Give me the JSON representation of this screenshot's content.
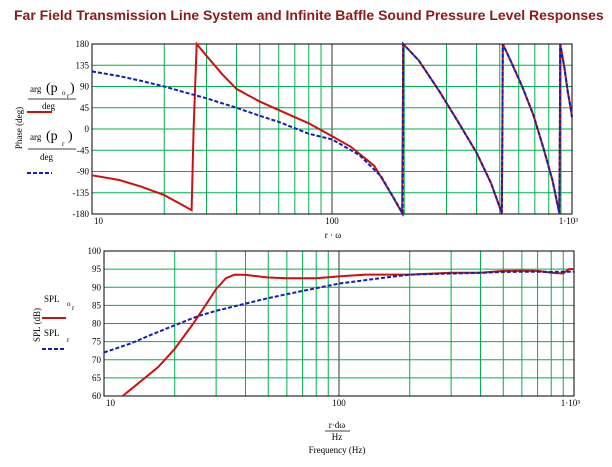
{
  "title": "Far Field Transmission Line System and Infinite Baffle Sound Pressure Level Responses",
  "colors": {
    "title": "#8b1a1a",
    "grid": "#00b050",
    "series_tl": "#cc1111",
    "series_ib": "#1122aa",
    "frame": "#000000"
  },
  "chart_data": [
    {
      "type": "line",
      "x_scale": "log",
      "xlim": [
        10,
        1000
      ],
      "ylim": [
        -180,
        180
      ],
      "x_ticks": [
        "10",
        "100",
        "1·10³"
      ],
      "y_ticks": [
        "180",
        "135",
        "90",
        "45",
        "0",
        "-45",
        "-90",
        "-135",
        "-180"
      ],
      "ylabel": "Phase (deg)",
      "xlabel_fragment": "r · ω",
      "legend": [
        {
          "name": "arg(p_or)/deg",
          "style": "solid"
        },
        {
          "name": "arg(p_r)/deg",
          "style": "dashed"
        }
      ],
      "series": [
        {
          "name": "arg(p_or)/deg",
          "points": [
            [
              10,
              -98
            ],
            [
              13,
              -108
            ],
            [
              16,
              -122
            ],
            [
              20,
              -140
            ],
            [
              24,
              -162
            ],
            [
              26,
              -172
            ],
            [
              26.5,
              0
            ],
            [
              27.3,
              180
            ],
            [
              30,
              155
            ],
            [
              35,
              115
            ],
            [
              40,
              85
            ],
            [
              50,
              58
            ],
            [
              60,
              40
            ],
            [
              80,
              12
            ],
            [
              100,
              -15
            ],
            [
              120,
              -38
            ],
            [
              150,
              -78
            ],
            [
              180,
              -145
            ],
            [
              196,
              -178
            ],
            [
              197,
              0
            ],
            [
              198,
              180
            ],
            [
              230,
              145
            ],
            [
              280,
              80
            ],
            [
              340,
              10
            ],
            [
              400,
              -50
            ],
            [
              460,
              -115
            ],
            [
              510,
              -178
            ],
            [
              513,
              0
            ],
            [
              515,
              180
            ],
            [
              560,
              140
            ],
            [
              620,
              90
            ],
            [
              690,
              30
            ],
            [
              760,
              -40
            ],
            [
              830,
              -110
            ],
            [
              885,
              -178
            ],
            [
              890,
              0
            ],
            [
              893,
              180
            ],
            [
              930,
              130
            ],
            [
              960,
              80
            ],
            [
              990,
              40
            ],
            [
              1000,
              25
            ]
          ]
        },
        {
          "name": "arg(p_r)/deg",
          "points": [
            [
              10,
              122
            ],
            [
              13,
              112
            ],
            [
              16,
              102
            ],
            [
              20,
              90
            ],
            [
              25,
              76
            ],
            [
              30,
              65
            ],
            [
              40,
              45
            ],
            [
              50,
              28
            ],
            [
              60,
              15
            ],
            [
              80,
              -10
            ],
            [
              100,
              -22
            ],
            [
              130,
              -55
            ],
            [
              160,
              -100
            ],
            [
              190,
              -165
            ],
            [
              197,
              -178
            ],
            [
              197.8,
              0
            ],
            [
              198,
              180
            ],
            [
              230,
              145
            ],
            [
              280,
              80
            ],
            [
              340,
              10
            ],
            [
              400,
              -50
            ],
            [
              460,
              -115
            ],
            [
              510,
              -178
            ],
            [
              513,
              0
            ],
            [
              515,
              180
            ],
            [
              560,
              140
            ],
            [
              620,
              90
            ],
            [
              690,
              30
            ],
            [
              760,
              -40
            ],
            [
              830,
              -110
            ],
            [
              885,
              -178
            ],
            [
              890,
              0
            ],
            [
              893,
              180
            ],
            [
              930,
              130
            ],
            [
              960,
              80
            ],
            [
              990,
              40
            ],
            [
              1000,
              25
            ]
          ]
        }
      ]
    },
    {
      "type": "line",
      "x_scale": "log",
      "xlim": [
        10,
        1000
      ],
      "ylim": [
        60,
        100
      ],
      "x_ticks": [
        "10",
        "100",
        "1·10³"
      ],
      "y_ticks": [
        "100",
        "95",
        "90",
        "85",
        "80",
        "75",
        "70",
        "65",
        "60"
      ],
      "ylabel": "SPL (dB)",
      "xlabel": "r·dω / Hz",
      "xlabel_numerator": "r·dω",
      "xlabel_denominator": "Hz",
      "xcaption": "Frequency (Hz)",
      "legend": [
        {
          "name": "SPL_or",
          "style": "solid"
        },
        {
          "name": "SPL_r",
          "style": "dashed"
        }
      ],
      "series": [
        {
          "name": "SPL_or",
          "points": [
            [
              12,
              60
            ],
            [
              14,
              63.5
            ],
            [
              17,
              68
            ],
            [
              20,
              73
            ],
            [
              24,
              80
            ],
            [
              27,
              85
            ],
            [
              30,
              89.5
            ],
            [
              33,
              92.5
            ],
            [
              36,
              93.5
            ],
            [
              40,
              93.4
            ],
            [
              50,
              92.7
            ],
            [
              60,
              92.5
            ],
            [
              80,
              92.5
            ],
            [
              100,
              93
            ],
            [
              130,
              93.5
            ],
            [
              160,
              93.5
            ],
            [
              200,
              93.5
            ],
            [
              300,
              94
            ],
            [
              400,
              94
            ],
            [
              500,
              94.5
            ],
            [
              600,
              94.6
            ],
            [
              700,
              94.5
            ],
            [
              800,
              94
            ],
            [
              900,
              93.8
            ],
            [
              950,
              95
            ],
            [
              1000,
              95
            ]
          ]
        },
        {
          "name": "SPL_r",
          "points": [
            [
              10,
              72
            ],
            [
              13,
              74.5
            ],
            [
              16,
              77
            ],
            [
              20,
              79.5
            ],
            [
              25,
              82
            ],
            [
              30,
              83.5
            ],
            [
              40,
              85.5
            ],
            [
              50,
              87
            ],
            [
              70,
              89
            ],
            [
              100,
              91
            ],
            [
              150,
              92.5
            ],
            [
              200,
              93.5
            ],
            [
              300,
              93.8
            ],
            [
              400,
              94
            ],
            [
              500,
              94.2
            ],
            [
              600,
              94.3
            ],
            [
              700,
              94.3
            ],
            [
              800,
              94.2
            ],
            [
              900,
              94.3
            ],
            [
              1000,
              94.3
            ]
          ]
        }
      ]
    }
  ]
}
